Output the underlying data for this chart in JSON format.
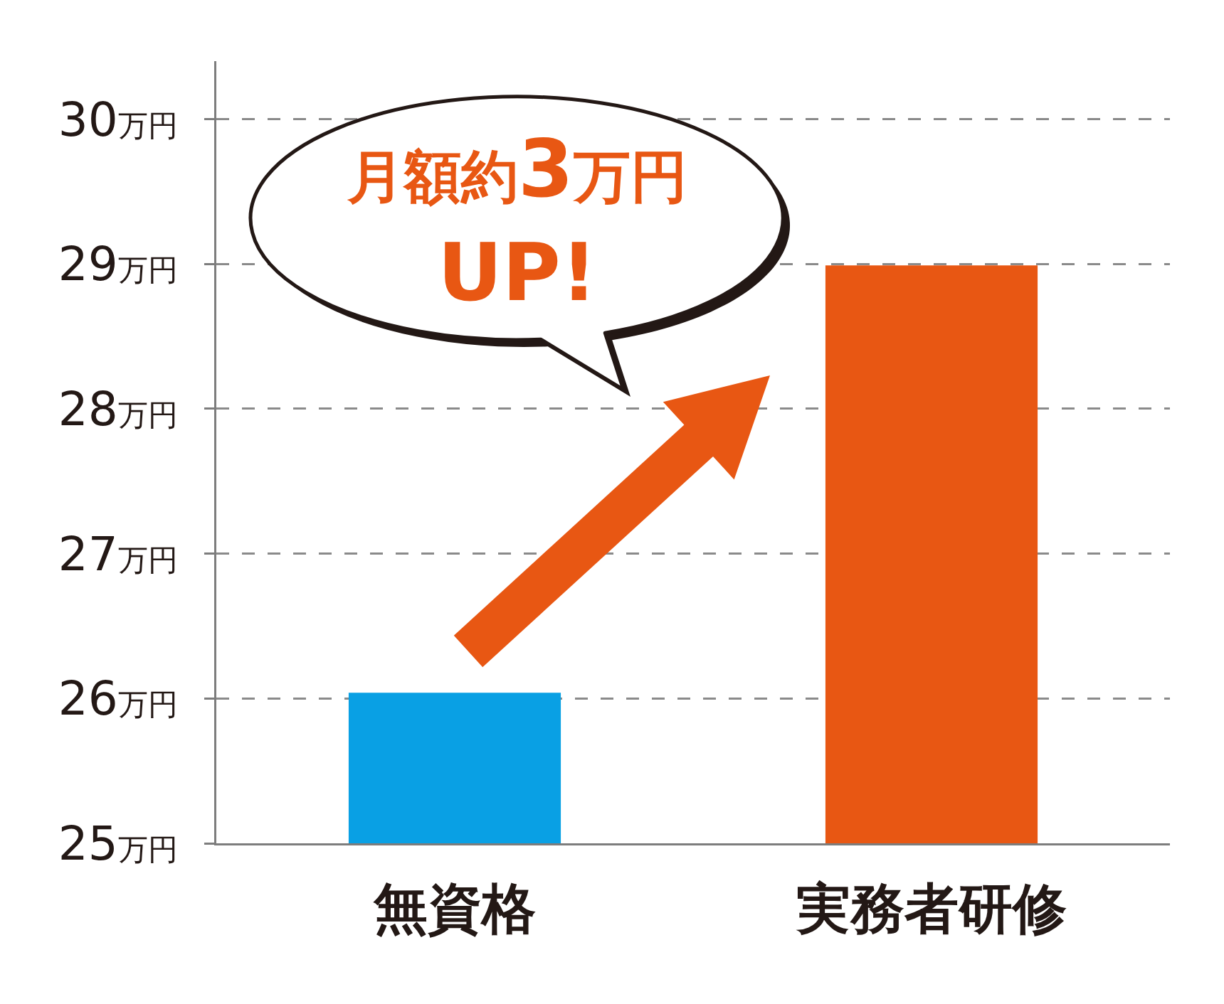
{
  "chart_data": {
    "type": "bar",
    "categories": [
      "無資格",
      "実務者研修"
    ],
    "values": [
      26.04,
      28.99
    ],
    "colors": [
      "#09a0e4",
      "#e85713"
    ],
    "ylim": [
      25,
      30.4
    ],
    "yticks": [
      {
        "value": 25,
        "label": "25万円"
      },
      {
        "value": 26,
        "label": "26万円"
      },
      {
        "value": 27,
        "label": "27万円"
      },
      {
        "value": 28,
        "label": "28万円"
      },
      {
        "value": 29,
        "label": "29万円"
      },
      {
        "value": 30,
        "label": "30万円"
      }
    ],
    "grid": "y",
    "annotations": [
      "月額約3万円\nUP!"
    ]
  }
}
